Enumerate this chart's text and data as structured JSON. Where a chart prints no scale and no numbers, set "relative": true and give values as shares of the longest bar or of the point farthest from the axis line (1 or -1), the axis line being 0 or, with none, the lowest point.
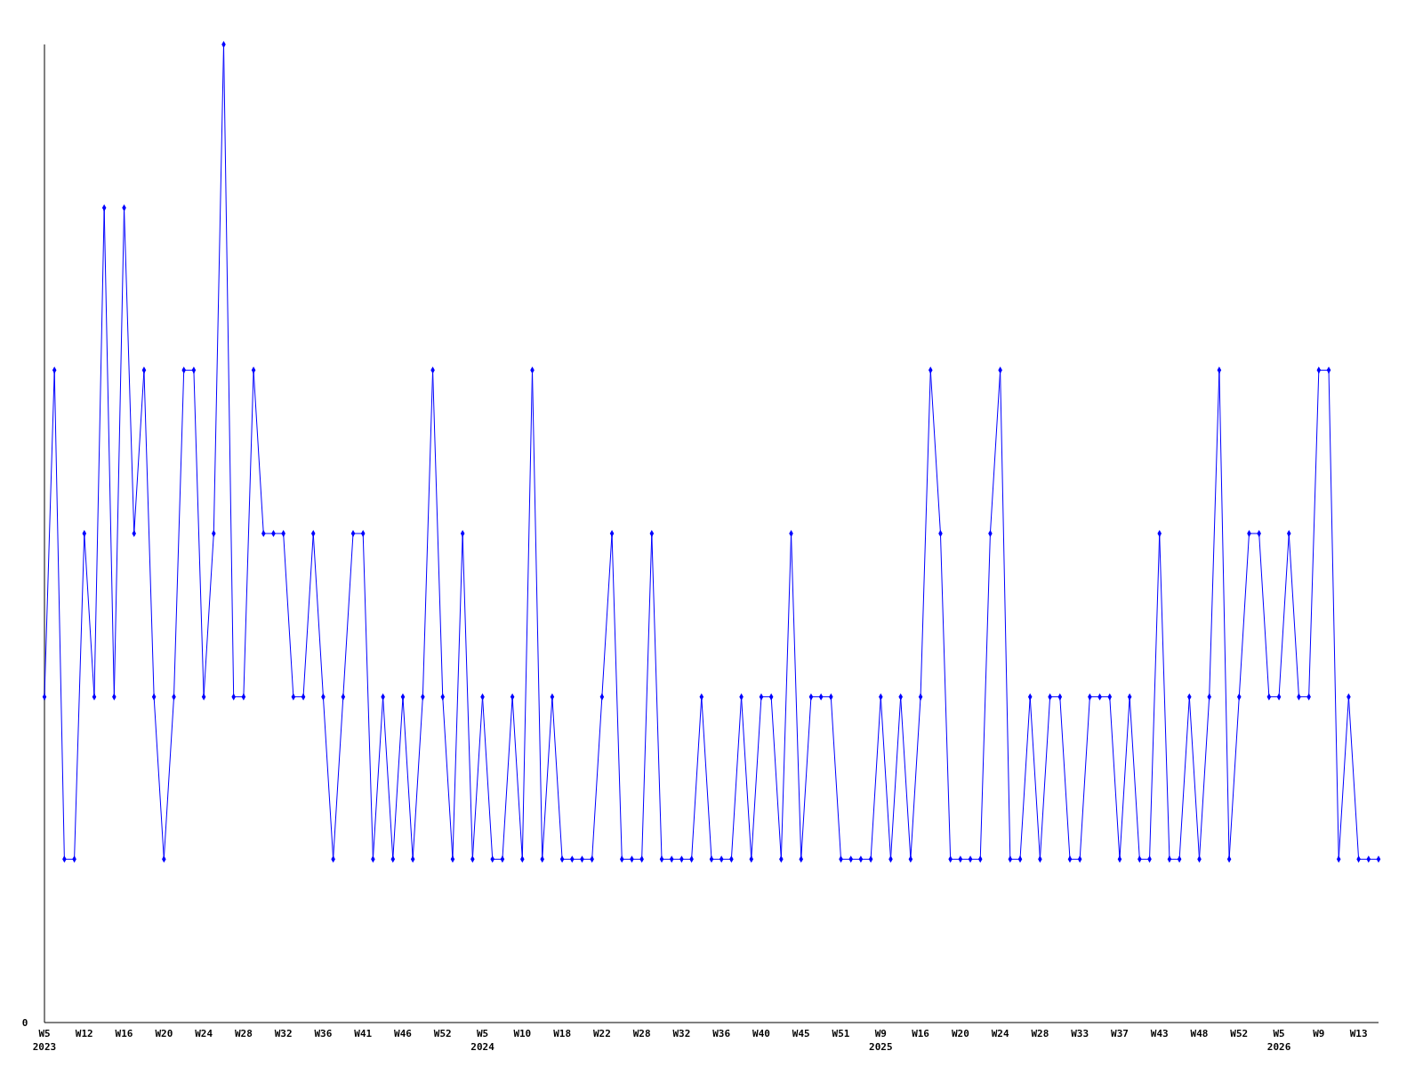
{
  "chart_data": {
    "type": "line",
    "relative": true,
    "color": "#0000ff",
    "marker": "diamond",
    "line_style": "solid",
    "annotations": [
      "0"
    ],
    "categories": [
      "W5\n2023",
      null,
      null,
      null,
      "W12",
      null,
      null,
      null,
      "W16",
      null,
      null,
      null,
      "W20",
      null,
      null,
      null,
      "W24",
      null,
      null,
      null,
      "W28",
      null,
      null,
      null,
      "W32",
      null,
      null,
      null,
      "W36",
      null,
      null,
      null,
      "W41",
      null,
      null,
      null,
      "W46",
      null,
      null,
      null,
      "W52",
      null,
      null,
      null,
      "W5\n2024",
      null,
      null,
      null,
      "W10",
      null,
      null,
      null,
      "W18",
      null,
      null,
      null,
      "W22",
      null,
      null,
      null,
      "W28",
      null,
      null,
      null,
      "W32",
      null,
      null,
      null,
      "W36",
      null,
      null,
      null,
      "W40",
      null,
      null,
      null,
      "W45",
      null,
      null,
      null,
      "W51",
      null,
      null,
      null,
      "W9\n2025",
      null,
      null,
      null,
      "W16",
      null,
      null,
      null,
      "W20",
      null,
      null,
      null,
      "W24",
      null,
      null,
      null,
      "W28",
      null,
      null,
      null,
      "W33",
      null,
      null,
      null,
      "W37",
      null,
      null,
      null,
      "W43",
      null,
      null,
      null,
      "W48",
      null,
      null,
      null,
      "W52",
      null,
      null,
      null,
      "W5\n2026",
      null,
      null,
      null,
      "W9",
      null,
      null,
      null,
      "W13",
      null,
      null
    ],
    "values": [
      0.333,
      0.667,
      0.167,
      0.167,
      0.5,
      0.333,
      0.833,
      0.333,
      0.833,
      0.5,
      0.667,
      0.333,
      0.167,
      0.333,
      0.667,
      0.667,
      0.333,
      0.5,
      1,
      0.333,
      0.333,
      0.667,
      0.5,
      0.5,
      0.5,
      0.333,
      0.333,
      0.5,
      0.333,
      0.167,
      0.333,
      0.5,
      0.5,
      0.167,
      0.333,
      0.167,
      0.333,
      0.167,
      0.333,
      0.667,
      0.333,
      0.167,
      0.5,
      0.167,
      0.333,
      0.167,
      0.167,
      0.333,
      0.167,
      0.667,
      0.167,
      0.333,
      0.167,
      0.167,
      0.167,
      0.167,
      0.333,
      0.5,
      0.167,
      0.167,
      0.167,
      0.5,
      0.167,
      0.167,
      0.167,
      0.167,
      0.333,
      0.167,
      0.167,
      0.167,
      0.333,
      0.167,
      0.333,
      0.333,
      0.167,
      0.5,
      0.167,
      0.333,
      0.333,
      0.333,
      0.167,
      0.167,
      0.167,
      0.167,
      0.333,
      0.167,
      0.333,
      0.167,
      0.333,
      0.667,
      0.5,
      0.167,
      0.167,
      0.167,
      0.167,
      0.5,
      0.667,
      0.167,
      0.167,
      0.333,
      0.167,
      0.333,
      0.333,
      0.167,
      0.167,
      0.333,
      0.333,
      0.333,
      0.167,
      0.333,
      0.167,
      0.167,
      0.5,
      0.167,
      0.167,
      0.333,
      0.167,
      0.333,
      0.667,
      0.167,
      0.333,
      0.5,
      0.5,
      0.333,
      0.333,
      0.5,
      0.333,
      0.333,
      0.667,
      0.667,
      0.167,
      0.333,
      0.167,
      0.167,
      0.167
    ]
  }
}
